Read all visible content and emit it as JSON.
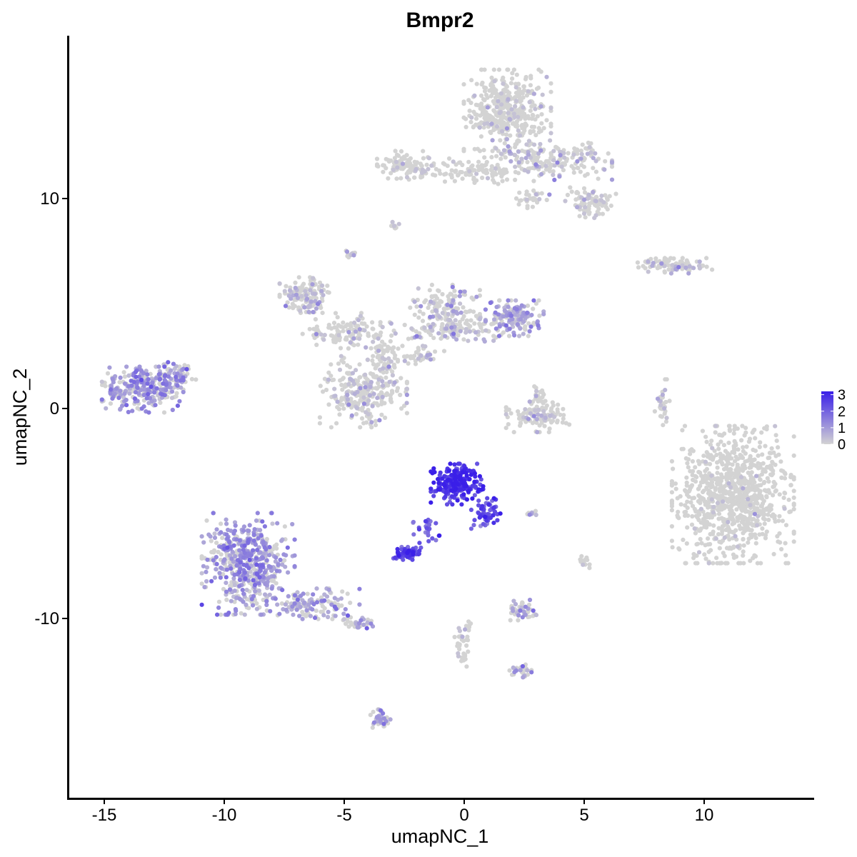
{
  "chart_data": {
    "type": "scatter",
    "title": "Bmpr2",
    "xlabel": "umapNC_1",
    "ylabel": "umapNC_2",
    "xlim": [
      -16.5,
      14.5
    ],
    "ylim": [
      -18.5,
      17.8
    ],
    "x_ticks": [
      -15,
      -10,
      -5,
      0,
      5,
      10
    ],
    "y_ticks": [
      -10,
      0,
      10
    ],
    "x_tick_labels": [
      "-15",
      "-10",
      "-5",
      "0",
      "5",
      "10"
    ],
    "y_tick_labels": [
      "-10",
      "0",
      "10"
    ],
    "grid": false,
    "legend": {
      "position": "right",
      "ticks": [
        3,
        2,
        1,
        0
      ],
      "tick_labels": [
        "3",
        "2",
        "1",
        "0"
      ],
      "min": 0,
      "max": 3.2
    },
    "color_scale": {
      "low": "#d3d3d3",
      "high": "#3a1fe8"
    },
    "clusters": [
      {
        "cx": 1.8,
        "cy": 14.2,
        "rx": 1.5,
        "ry": 1.6,
        "n": 420,
        "expr": 0.15,
        "pexpr": 0.12
      },
      {
        "cx": 3.5,
        "cy": 11.8,
        "rx": 2.2,
        "ry": 0.8,
        "n": 200,
        "expr": 0.5,
        "pexpr": 0.25
      },
      {
        "cx": 0.6,
        "cy": 11.3,
        "rx": 1.6,
        "ry": 0.5,
        "n": 90,
        "expr": 0.1,
        "pexpr": 0.06
      },
      {
        "cx": 5.3,
        "cy": 9.8,
        "rx": 0.9,
        "ry": 0.6,
        "n": 90,
        "expr": 0.3,
        "pexpr": 0.2
      },
      {
        "cx": -2.3,
        "cy": 11.6,
        "rx": 1.1,
        "ry": 0.6,
        "n": 110,
        "expr": 0.2,
        "pexpr": 0.12
      },
      {
        "cx": 2.9,
        "cy": 10.0,
        "rx": 0.6,
        "ry": 0.4,
        "n": 30,
        "expr": 0.15,
        "pexpr": 0.1
      },
      {
        "cx": 9.0,
        "cy": 6.8,
        "rx": 1.1,
        "ry": 0.3,
        "n": 70,
        "expr": 0.4,
        "pexpr": 0.22
      },
      {
        "cx": 7.9,
        "cy": 6.9,
        "rx": 0.8,
        "ry": 0.2,
        "n": 25,
        "expr": 0.1,
        "pexpr": 0.05
      },
      {
        "cx": -6.6,
        "cy": 5.4,
        "rx": 0.9,
        "ry": 0.7,
        "n": 140,
        "expr": 0.6,
        "pexpr": 0.3
      },
      {
        "cx": 2.1,
        "cy": 4.3,
        "rx": 1.0,
        "ry": 0.7,
        "n": 150,
        "expr": 1.0,
        "pexpr": 0.55
      },
      {
        "cx": -0.8,
        "cy": 4.8,
        "rx": 1.2,
        "ry": 0.9,
        "n": 130,
        "expr": 0.6,
        "pexpr": 0.3
      },
      {
        "cx": -0.3,
        "cy": 3.8,
        "rx": 1.8,
        "ry": 0.5,
        "n": 110,
        "expr": 0.5,
        "pexpr": 0.28
      },
      {
        "cx": -4.8,
        "cy": 3.7,
        "rx": 1.6,
        "ry": 0.7,
        "n": 120,
        "expr": 0.4,
        "pexpr": 0.2
      },
      {
        "cx": -4.2,
        "cy": 0.8,
        "rx": 1.5,
        "ry": 1.4,
        "n": 260,
        "expr": 0.35,
        "pexpr": 0.22
      },
      {
        "cx": -3.3,
        "cy": 2.3,
        "rx": 0.6,
        "ry": 1.0,
        "n": 60,
        "expr": 0.3,
        "pexpr": 0.18
      },
      {
        "cx": -1.8,
        "cy": 2.5,
        "rx": 0.8,
        "ry": 0.4,
        "n": 40,
        "expr": 0.3,
        "pexpr": 0.2
      },
      {
        "cx": -13.4,
        "cy": 0.9,
        "rx": 1.4,
        "ry": 0.9,
        "n": 280,
        "expr": 1.1,
        "pexpr": 0.6
      },
      {
        "cx": -12.0,
        "cy": 1.6,
        "rx": 0.7,
        "ry": 0.5,
        "n": 50,
        "expr": 0.9,
        "pexpr": 0.5
      },
      {
        "cx": 3.2,
        "cy": -0.4,
        "rx": 1.2,
        "ry": 0.6,
        "n": 110,
        "expr": 0.3,
        "pexpr": 0.2
      },
      {
        "cx": 3.2,
        "cy": 0.6,
        "rx": 0.4,
        "ry": 0.5,
        "n": 25,
        "expr": 0.2,
        "pexpr": 0.15
      },
      {
        "cx": 8.3,
        "cy": 0.3,
        "rx": 0.3,
        "ry": 0.9,
        "n": 35,
        "expr": 0.3,
        "pexpr": 0.2
      },
      {
        "cx": 11.2,
        "cy": -4.1,
        "rx": 2.1,
        "ry": 2.7,
        "n": 900,
        "expr": 0.06,
        "pexpr": 0.03
      },
      {
        "cx": -0.3,
        "cy": -3.6,
        "rx": 0.9,
        "ry": 0.8,
        "n": 240,
        "expr": 2.7,
        "pexpr": 1.0
      },
      {
        "cx": 0.9,
        "cy": -5.0,
        "rx": 0.5,
        "ry": 0.6,
        "n": 60,
        "expr": 2.2,
        "pexpr": 1.0
      },
      {
        "cx": -2.4,
        "cy": -6.9,
        "rx": 0.5,
        "ry": 0.25,
        "n": 80,
        "expr": 2.5,
        "pexpr": 1.0
      },
      {
        "cx": -1.6,
        "cy": -5.9,
        "rx": 0.5,
        "ry": 0.6,
        "n": 25,
        "expr": 2.2,
        "pexpr": 1.0
      },
      {
        "cx": -9.0,
        "cy": -7.4,
        "rx": 1.6,
        "ry": 2.0,
        "n": 520,
        "expr": 1.1,
        "pexpr": 0.68
      },
      {
        "cx": -6.3,
        "cy": -9.3,
        "rx": 1.6,
        "ry": 0.6,
        "n": 130,
        "expr": 1.0,
        "pexpr": 0.6
      },
      {
        "cx": -4.4,
        "cy": -10.2,
        "rx": 0.6,
        "ry": 0.3,
        "n": 40,
        "expr": 0.9,
        "pexpr": 0.5
      },
      {
        "cx": 2.4,
        "cy": -9.6,
        "rx": 0.5,
        "ry": 0.4,
        "n": 50,
        "expr": 0.7,
        "pexpr": 0.45
      },
      {
        "cx": 0.0,
        "cy": -11.2,
        "rx": 0.35,
        "ry": 1.0,
        "n": 35,
        "expr": 0.2,
        "pexpr": 0.1
      },
      {
        "cx": 2.2,
        "cy": -12.5,
        "rx": 0.5,
        "ry": 0.25,
        "n": 30,
        "expr": 0.8,
        "pexpr": 0.4
      },
      {
        "cx": -3.5,
        "cy": -14.8,
        "rx": 0.35,
        "ry": 0.4,
        "n": 35,
        "expr": 0.9,
        "pexpr": 0.55
      },
      {
        "cx": 5.0,
        "cy": -7.3,
        "rx": 0.2,
        "ry": 0.3,
        "n": 15,
        "expr": 0.2,
        "pexpr": 0.1
      },
      {
        "cx": 2.8,
        "cy": -5.0,
        "rx": 0.3,
        "ry": 0.1,
        "n": 10,
        "expr": 0.6,
        "pexpr": 0.4
      },
      {
        "cx": -2.9,
        "cy": 8.7,
        "rx": 0.2,
        "ry": 0.15,
        "n": 8,
        "expr": 0.4,
        "pexpr": 0.3
      },
      {
        "cx": -4.7,
        "cy": 7.4,
        "rx": 0.3,
        "ry": 0.2,
        "n": 10,
        "expr": 0.3,
        "pexpr": 0.2
      }
    ]
  }
}
